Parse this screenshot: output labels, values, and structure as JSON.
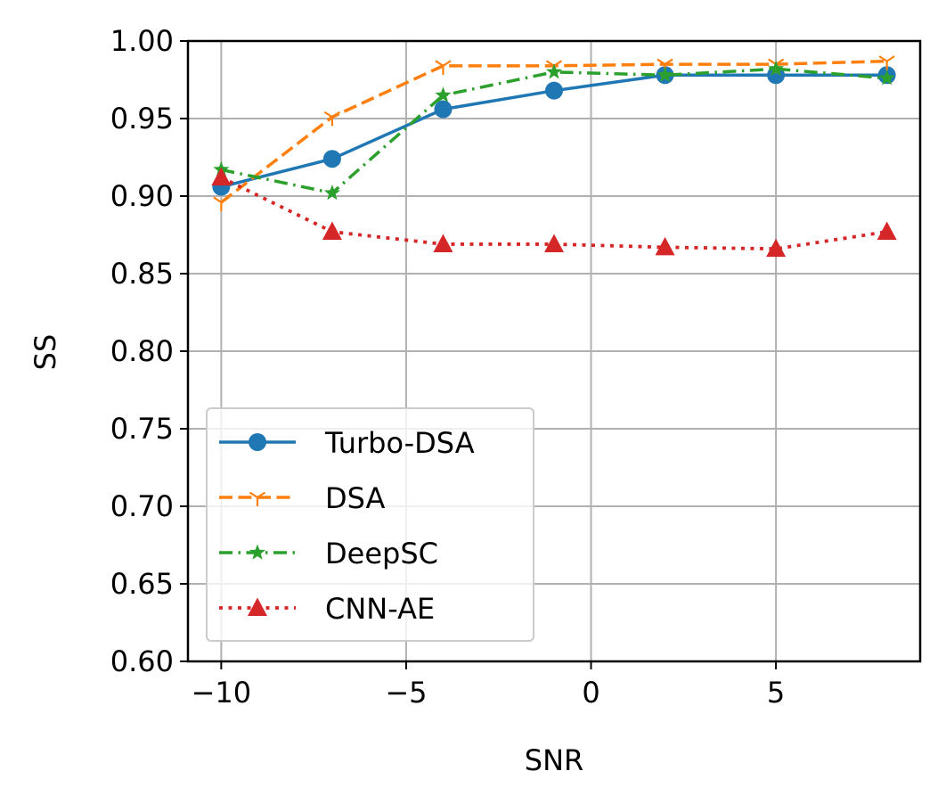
{
  "chart_data": {
    "type": "line",
    "title": "",
    "xlabel": "SNR",
    "ylabel": "SS",
    "xlim": [
      -10.9,
      8.9
    ],
    "ylim": [
      0.6,
      1.0
    ],
    "grid": true,
    "legend_position": "lower-left",
    "x": [
      -10,
      -7,
      -4,
      -1,
      2,
      5,
      8
    ],
    "x_ticks": [
      -10,
      -5,
      0,
      5
    ],
    "x_tick_labels": [
      "−10",
      "−5",
      "0",
      "5"
    ],
    "y_ticks": [
      0.6,
      0.65,
      0.7,
      0.75,
      0.8,
      0.85,
      0.9,
      0.95,
      1.0
    ],
    "y_tick_labels": [
      "0.60",
      "0.65",
      "0.70",
      "0.75",
      "0.80",
      "0.85",
      "0.90",
      "0.95",
      "1.00"
    ],
    "series": [
      {
        "name": "Turbo-DSA",
        "color": "#1f77b4",
        "linestyle": "solid",
        "marker": "circle",
        "values": [
          0.906,
          0.924,
          0.956,
          0.968,
          0.978,
          0.978,
          0.978
        ]
      },
      {
        "name": "DSA",
        "color": "#ff7f0e",
        "linestyle": "dashed",
        "marker": "tri-down",
        "values": [
          0.896,
          0.951,
          0.984,
          0.984,
          0.985,
          0.985,
          0.987
        ]
      },
      {
        "name": "DeepSC",
        "color": "#2ca02c",
        "linestyle": "dashdot",
        "marker": "star",
        "values": [
          0.917,
          0.902,
          0.965,
          0.98,
          0.978,
          0.982,
          0.976
        ]
      },
      {
        "name": "CNN-AE",
        "color": "#d62728",
        "linestyle": "dotted",
        "marker": "triangle-up",
        "values": [
          0.912,
          0.877,
          0.869,
          0.869,
          0.867,
          0.866,
          0.877
        ]
      }
    ]
  }
}
